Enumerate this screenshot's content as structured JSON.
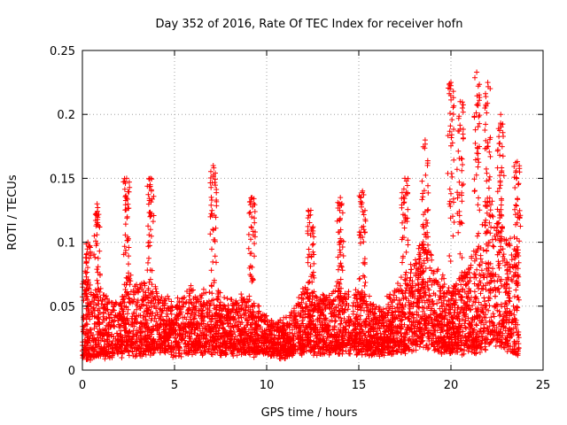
{
  "chart_data": {
    "type": "scatter",
    "title": "Day 352 of 2016, Rate Of TEC Index for receiver hofn",
    "xlabel": "GPS time / hours",
    "ylabel": "ROTI / TECUs",
    "xlim": [
      0,
      25
    ],
    "ylim": [
      0,
      0.25
    ],
    "x_ticks": [
      "0",
      "5",
      "10",
      "15",
      "20",
      "25"
    ],
    "y_ticks": [
      "0",
      "0.05",
      "0.1",
      "0.15",
      "0.2",
      "0.25"
    ],
    "grid": true,
    "marker": "+",
    "marker_color": "#ff0000",
    "point_density": 5000,
    "data_extent_x": [
      0,
      23.7
    ],
    "envelope": {
      "x": [
        0,
        1,
        2,
        2.5,
        3,
        4,
        5,
        6,
        7,
        8,
        9,
        10,
        11,
        12,
        13,
        14,
        15,
        16,
        17,
        18,
        18.5,
        19,
        20,
        20.5,
        21,
        21.5,
        22,
        22.5,
        23,
        23.7
      ],
      "baseline": [
        0.012,
        0.015,
        0.016,
        0.02,
        0.018,
        0.02,
        0.018,
        0.02,
        0.02,
        0.02,
        0.018,
        0.018,
        0.015,
        0.02,
        0.02,
        0.02,
        0.02,
        0.018,
        0.02,
        0.025,
        0.03,
        0.025,
        0.018,
        0.02,
        0.025,
        0.015,
        0.03,
        0.03,
        0.025,
        0.02
      ],
      "upper": [
        0.07,
        0.06,
        0.05,
        0.07,
        0.065,
        0.06,
        0.05,
        0.06,
        0.06,
        0.05,
        0.055,
        0.04,
        0.035,
        0.06,
        0.055,
        0.06,
        0.06,
        0.045,
        0.06,
        0.08,
        0.1,
        0.08,
        0.06,
        0.07,
        0.08,
        0.1,
        0.14,
        0.12,
        0.1,
        0.09
      ]
    },
    "peaks": [
      {
        "x": 0.3,
        "y": 0.1
      },
      {
        "x": 0.8,
        "y": 0.13
      },
      {
        "x": 2.4,
        "y": 0.15
      },
      {
        "x": 3.7,
        "y": 0.15
      },
      {
        "x": 7.1,
        "y": 0.16
      },
      {
        "x": 9.2,
        "y": 0.135
      },
      {
        "x": 12.4,
        "y": 0.125
      },
      {
        "x": 14.0,
        "y": 0.135
      },
      {
        "x": 15.2,
        "y": 0.14
      },
      {
        "x": 17.5,
        "y": 0.15
      },
      {
        "x": 18.6,
        "y": 0.18
      },
      {
        "x": 20.0,
        "y": 0.225
      },
      {
        "x": 20.5,
        "y": 0.21
      },
      {
        "x": 21.4,
        "y": 0.233
      },
      {
        "x": 22.0,
        "y": 0.225
      },
      {
        "x": 22.7,
        "y": 0.2
      },
      {
        "x": 23.6,
        "y": 0.163
      }
    ]
  }
}
